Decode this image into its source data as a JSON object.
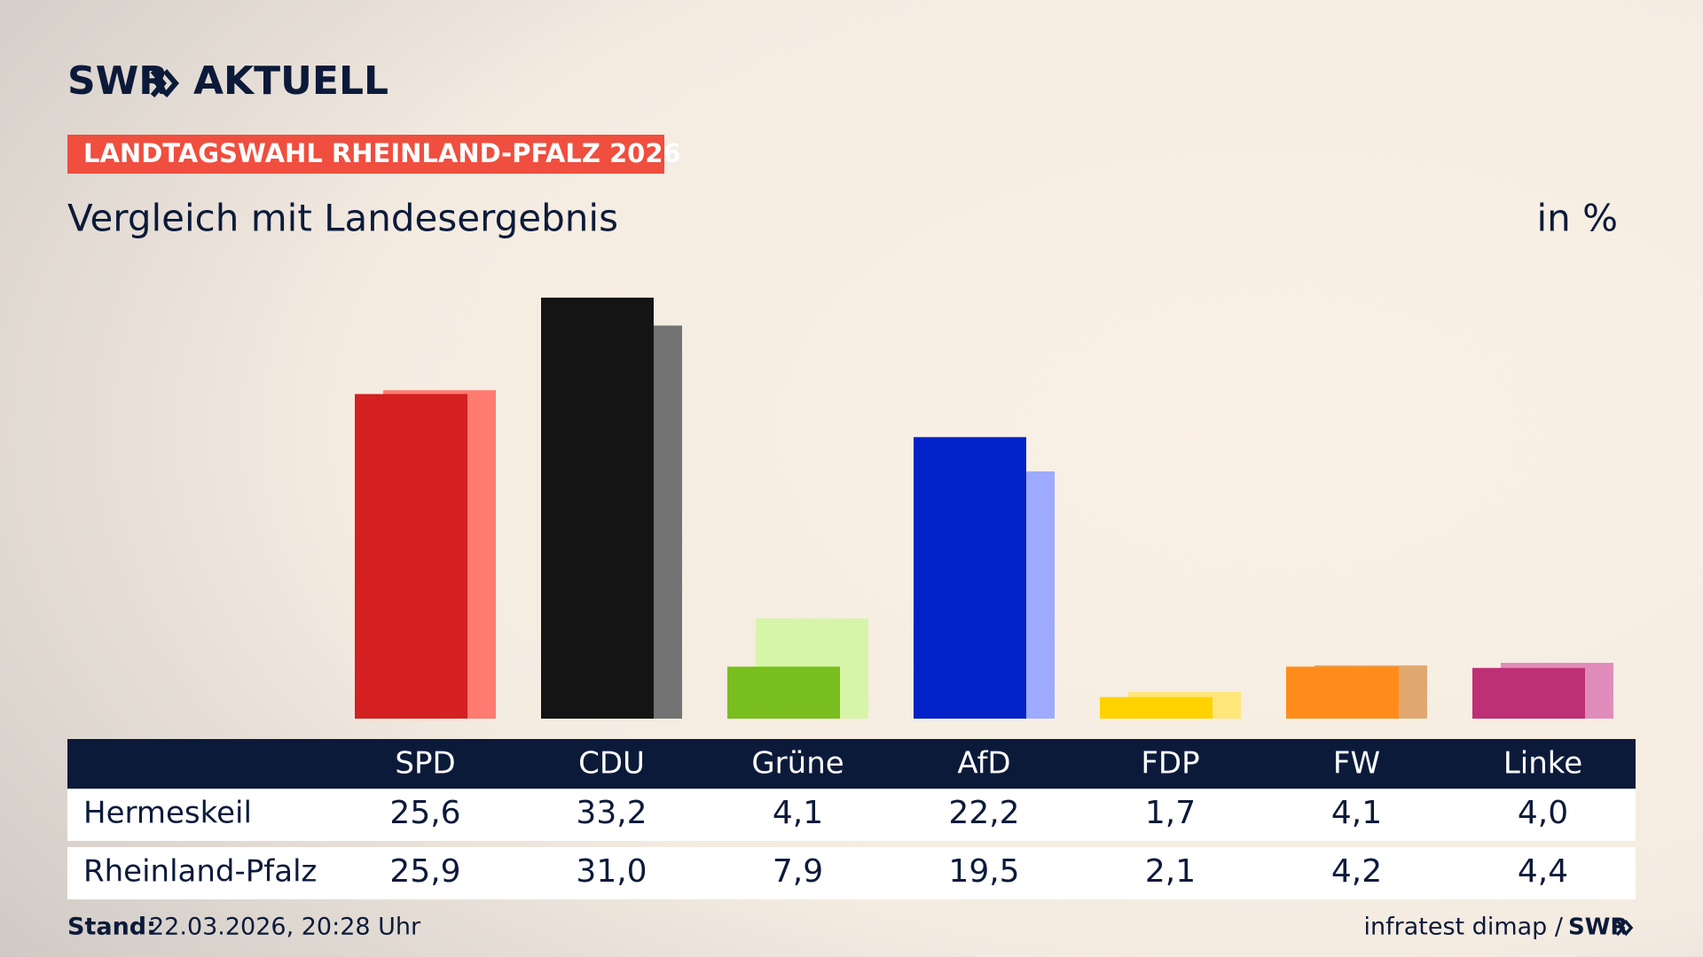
{
  "header": {
    "brand": "SWR",
    "brand_name": "AKTUELL",
    "banner": "LANDTAGSWAHL RHEINLAND-PFALZ 2026"
  },
  "chart_data": {
    "type": "bar",
    "title": "Vergleich mit Landesergebnis",
    "unit": "in %",
    "categories": [
      "SPD",
      "CDU",
      "Grüne",
      "AfD",
      "FDP",
      "FW",
      "Linke"
    ],
    "series": [
      {
        "name": "Hermeskeil",
        "colors": [
          "#d42020",
          "#141414",
          "#78be1e",
          "#0022c8",
          "#ffd200",
          "#ff8c1a",
          "#be3075"
        ],
        "values": [
          25.6,
          33.2,
          4.1,
          22.2,
          1.7,
          4.1,
          4.0
        ],
        "value_labels": [
          "25,6",
          "33,2",
          "4,1",
          "22,2",
          "1,7",
          "4,1",
          "4,0"
        ]
      },
      {
        "name": "Rheinland-Pfalz",
        "colors": [
          "#ff7a70",
          "#737373",
          "#d7f5a8",
          "#9eaaff",
          "#ffe67a",
          "#e0a870",
          "#e08cbb"
        ],
        "values": [
          25.9,
          31.0,
          7.9,
          19.5,
          2.1,
          4.2,
          4.4
        ],
        "value_labels": [
          "25,9",
          "31,0",
          "7,9",
          "19,5",
          "2,1",
          "4,2",
          "4,4"
        ]
      }
    ]
  },
  "footer": {
    "stand_label": "Stand:",
    "stand": "22.03.2026, 20:28 Uhr",
    "source": "infratest dimap /",
    "brand": "SWR"
  }
}
